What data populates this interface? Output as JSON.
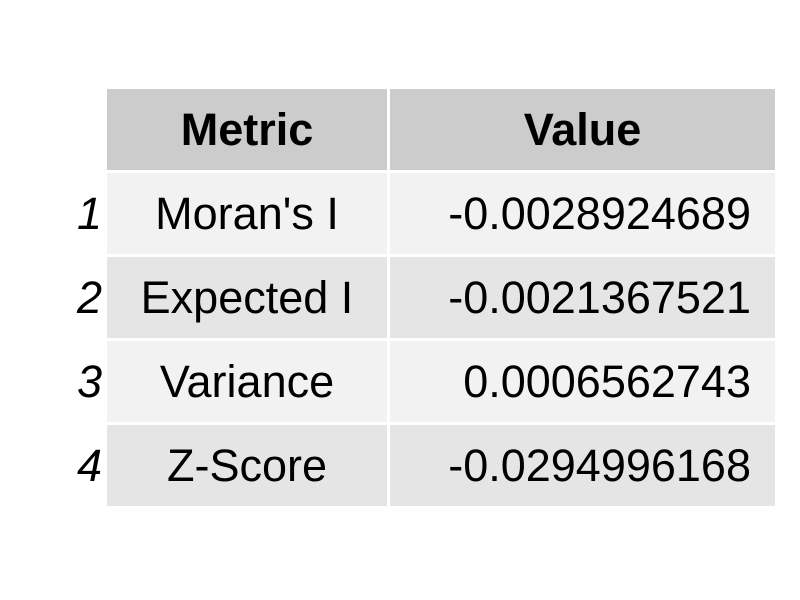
{
  "chart_data": {
    "type": "table",
    "columns": [
      "Metric",
      "Value"
    ],
    "rows": [
      {
        "index": "1",
        "metric": "Moran's I",
        "value": "-0.0028924689"
      },
      {
        "index": "2",
        "metric": "Expected I",
        "value": "-0.0021367521"
      },
      {
        "index": "3",
        "metric": "Variance",
        "value": "0.0006562743"
      },
      {
        "index": "4",
        "metric": "Z-Score",
        "value": "-0.0294996168"
      }
    ]
  },
  "colors": {
    "header_bg": "#cccccc",
    "row_odd_bg": "#f2f2f2",
    "row_even_bg": "#e5e5e5"
  }
}
